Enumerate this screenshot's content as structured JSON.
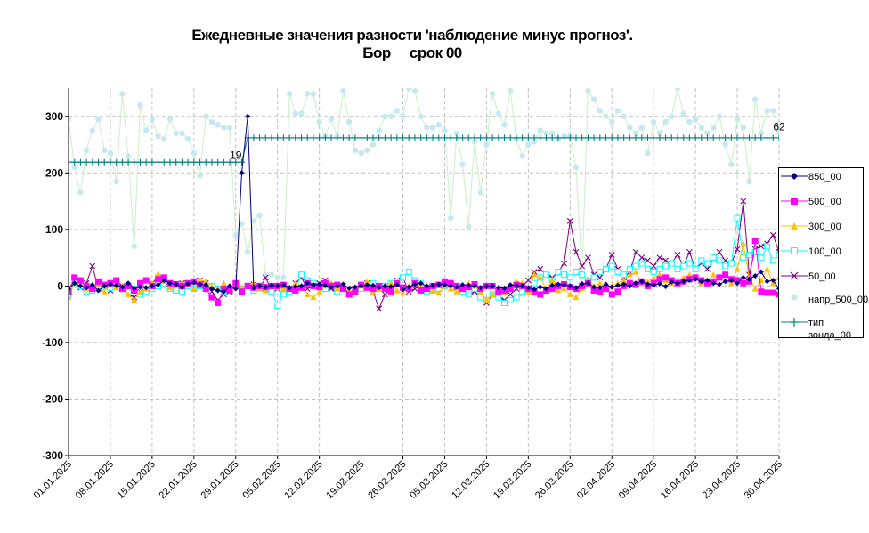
{
  "chart_data": {
    "type": "line",
    "title": "Ежедневные значения разности 'наблюдение минус прогноз'.",
    "subtitle": "Бор     срок 00",
    "ylim": [
      -300,
      350
    ],
    "yticks": [
      -300,
      -200,
      -100,
      0,
      100,
      200,
      300
    ],
    "x_start": "2025-01-01",
    "x_end": "2025-04-30",
    "xtick_labels": [
      "01.01.2025",
      "08.01.2025",
      "15.01.2025",
      "22.01.2025",
      "29.01.2025",
      "05.02.2025",
      "12.02.2025",
      "19.02.2025",
      "26.02.2025",
      "05.03.2025",
      "12.03.2025",
      "19.03.2025",
      "26.03.2025",
      "02.04.2025",
      "09.04.2025",
      "16.04.2025",
      "23.04.2025",
      "30.04.2025"
    ],
    "grid": true,
    "legend_position": "right",
    "annotations": [
      {
        "text": "19",
        "x": "2025-01-29",
        "y": 225
      },
      {
        "text": "62",
        "x": "2025-04-30",
        "y": 275
      }
    ],
    "series": [
      {
        "name": "850_00",
        "color": "#000080",
        "marker": "diamond",
        "values": [
          -5,
          5,
          0,
          -3,
          2,
          -8,
          0,
          3,
          1,
          -2,
          5,
          -4,
          -2,
          -3,
          0,
          2,
          10,
          5,
          3,
          -2,
          4,
          6,
          3,
          2,
          -5,
          -8,
          -10,
          0,
          -5,
          200,
          300,
          -3,
          0,
          -2,
          1,
          0,
          2,
          -3,
          -1,
          0,
          5,
          2,
          3,
          1,
          -2,
          0,
          3,
          -4,
          -2,
          0,
          2,
          1,
          -3,
          0,
          -1,
          2,
          -6,
          -2,
          3,
          5,
          0,
          1,
          3,
          2,
          0,
          -2,
          2,
          1,
          0,
          -3,
          -1,
          0,
          -3,
          -4,
          2,
          1,
          0,
          -3,
          -6,
          -2,
          -5,
          1,
          3,
          2,
          0,
          -3,
          4,
          5,
          -2,
          -3,
          3,
          -2,
          1,
          3,
          0,
          5,
          8,
          3,
          2,
          4,
          -1,
          7,
          5,
          8,
          10,
          12,
          8,
          10,
          5,
          3,
          8,
          10,
          5,
          15,
          12,
          18,
          25,
          8,
          10,
          -5,
          -3,
          2,
          6,
          8,
          10
        ]
      },
      {
        "name": "500_00",
        "color": "#ff00ff",
        "marker": "square",
        "values": [
          -10,
          15,
          10,
          0,
          -5,
          8,
          2,
          5,
          10,
          -5,
          0,
          -8,
          5,
          10,
          0,
          12,
          15,
          5,
          3,
          0,
          5,
          8,
          2,
          -5,
          -20,
          -30,
          -5,
          -8,
          5,
          -10,
          0,
          -3,
          0,
          -2,
          0,
          0,
          2,
          -5,
          -8,
          -3,
          5,
          0,
          -2,
          5,
          0,
          2,
          -5,
          -15,
          -10,
          2,
          -3,
          -5,
          0,
          -5,
          -10,
          5,
          -3,
          -5,
          5,
          -8,
          -5,
          0,
          2,
          8,
          5,
          0,
          -5,
          -2,
          3,
          -5,
          0,
          0,
          -10,
          -8,
          -5,
          2,
          0,
          -5,
          -10,
          -15,
          -8,
          -5,
          0,
          3,
          -2,
          -5,
          0,
          5,
          -8,
          -10,
          -5,
          -15,
          -10,
          0,
          5,
          2,
          8,
          0,
          5,
          12,
          15,
          10,
          5,
          8,
          12,
          15,
          10,
          5,
          8,
          15,
          20,
          12,
          10,
          5,
          8,
          80,
          -10,
          -12,
          -12,
          -15,
          0,
          5,
          10,
          8,
          12,
          20
        ]
      },
      {
        "name": "300_00",
        "color": "#ffc000",
        "marker": "triangle",
        "values": [
          -20,
          5,
          8,
          -5,
          0,
          3,
          -10,
          5,
          -3,
          0,
          -15,
          -25,
          -10,
          -5,
          5,
          22,
          8,
          -3,
          0,
          5,
          2,
          -5,
          10,
          8,
          0,
          -5,
          5,
          -8,
          0,
          -2,
          0,
          5,
          -5,
          -8,
          0,
          -3,
          -5,
          -2,
          5,
          0,
          -15,
          -20,
          -10,
          0,
          5,
          -5,
          -2,
          -10,
          -5,
          0,
          8,
          -10,
          -5,
          0,
          5,
          -8,
          -12,
          0,
          5,
          3,
          -5,
          -8,
          -12,
          0,
          -5,
          -10,
          -3,
          5,
          0,
          -10,
          -25,
          -15,
          -8,
          -12,
          0,
          8,
          5,
          -10,
          20,
          15,
          -5,
          10,
          -8,
          -5,
          -15,
          -20,
          -5,
          10,
          0,
          5,
          -3,
          0,
          5,
          10,
          20,
          25,
          5,
          8,
          15,
          20,
          10,
          5,
          10,
          15,
          20,
          15,
          5,
          8,
          20,
          15,
          10,
          5,
          30,
          75,
          15,
          -5,
          10,
          30,
          5,
          15,
          20,
          25,
          10
        ]
      },
      {
        "name": "100_00",
        "color": "#00ffff",
        "marker": "square-open",
        "values": [
          -15,
          5,
          0,
          -10,
          -8,
          -5,
          0,
          -3,
          5,
          -5,
          -10,
          -5,
          -15,
          -10,
          -5,
          0,
          5,
          -5,
          -8,
          -10,
          0,
          -5,
          0,
          -3,
          0,
          -5,
          -10,
          -8,
          0,
          -5,
          0,
          -8,
          0,
          -5,
          -10,
          -35,
          -15,
          -10,
          -5,
          20,
          10,
          5,
          0,
          -5,
          0,
          -10,
          -5,
          -15,
          -10,
          -5,
          0,
          5,
          -5,
          0,
          5,
          8,
          15,
          25,
          10,
          5,
          -10,
          -8,
          -5,
          0,
          5,
          0,
          -10,
          -15,
          -5,
          -20,
          -25,
          -15,
          -20,
          -30,
          -25,
          -20,
          -10,
          -5,
          5,
          15,
          20,
          10,
          25,
          20,
          15,
          25,
          20,
          10,
          15,
          25,
          30,
          35,
          25,
          20,
          30,
          35,
          40,
          30,
          25,
          30,
          35,
          40,
          30,
          35,
          40,
          30,
          45,
          40,
          50,
          45,
          35,
          40,
          120,
          50,
          55,
          60,
          50,
          70,
          45,
          55,
          60,
          50,
          55
        ]
      },
      {
        "name": "50_00",
        "color": "#800080",
        "marker": "x",
        "values": [
          -5,
          10,
          -3,
          5,
          35,
          -5,
          0,
          -8,
          5,
          0,
          -15,
          -20,
          -10,
          -5,
          5,
          15,
          5,
          -3,
          2,
          5,
          0,
          -5,
          10,
          5,
          -10,
          -25,
          -15,
          -10,
          0,
          -5,
          0,
          3,
          -5,
          15,
          -8,
          -5,
          0,
          -10,
          5,
          15,
          -5,
          0,
          5,
          10,
          -5,
          -10,
          0,
          -15,
          -5,
          0,
          5,
          -10,
          -40,
          -15,
          0,
          10,
          15,
          -10,
          -5,
          0,
          -5,
          -8,
          -5,
          0,
          5,
          -3,
          -10,
          -15,
          -10,
          -20,
          -30,
          -15,
          -20,
          -25,
          -15,
          -5,
          0,
          10,
          25,
          30,
          20,
          15,
          25,
          40,
          115,
          60,
          35,
          50,
          20,
          15,
          30,
          55,
          30,
          15,
          25,
          60,
          50,
          45,
          35,
          50,
          45,
          40,
          55,
          35,
          60,
          30,
          40,
          30,
          50,
          60,
          45,
          40,
          65,
          150,
          20,
          65,
          70,
          75,
          90,
          60,
          65,
          70,
          75,
          80
        ]
      },
      {
        "name": "напр_500_00",
        "color": "#c6e8f0",
        "line_color": "#c8f0c8",
        "marker": "circle",
        "values": [
          295,
          210,
          165,
          240,
          275,
          295,
          240,
          235,
          185,
          340,
          230,
          70,
          320,
          275,
          295,
          265,
          260,
          295,
          270,
          270,
          260,
          235,
          195,
          300,
          290,
          285,
          280,
          280,
          90,
          110,
          60,
          115,
          125,
          20,
          20,
          15,
          15,
          340,
          305,
          305,
          340,
          340,
          290,
          265,
          295,
          265,
          345,
          290,
          240,
          235,
          240,
          250,
          275,
          300,
          300,
          310,
          300,
          350,
          345,
          300,
          280,
          280,
          285,
          275,
          120,
          270,
          215,
          105,
          255,
          165,
          250,
          340,
          305,
          285,
          345,
          260,
          230,
          250,
          255,
          275,
          270,
          270,
          260,
          265,
          265,
          210,
          15,
          345,
          330,
          310,
          300,
          290,
          310,
          300,
          280,
          270,
          280,
          235,
          290,
          270,
          290,
          300,
          350,
          305,
          290,
          295,
          280,
          270,
          280,
          300,
          250,
          215,
          295,
          280,
          185,
          330,
          270,
          310,
          310,
          275,
          290,
          330,
          210
        ]
      },
      {
        "name": "тип зонда_00",
        "color": "#008080",
        "marker": "plus",
        "values": [
          219,
          219,
          219,
          219,
          219,
          219,
          219,
          219,
          219,
          219,
          219,
          219,
          219,
          219,
          219,
          219,
          219,
          219,
          219,
          219,
          219,
          219,
          219,
          219,
          219,
          219,
          219,
          219,
          219,
          219,
          262,
          262,
          262,
          262,
          262,
          262,
          262,
          262,
          262,
          262,
          262,
          262,
          262,
          262,
          262,
          262,
          262,
          262,
          262,
          262,
          262,
          262,
          262,
          262,
          262,
          262,
          262,
          262,
          262,
          262,
          262,
          262,
          262,
          262,
          262,
          262,
          262,
          262,
          262,
          262,
          262,
          262,
          262,
          262,
          262,
          262,
          262,
          262,
          262,
          262,
          262,
          262,
          262,
          262,
          262,
          262,
          262,
          262,
          262,
          262,
          262,
          262,
          262,
          262,
          262,
          262,
          262,
          262,
          262,
          262,
          262,
          262,
          262,
          262,
          262,
          262,
          262,
          262,
          262,
          262,
          262,
          262,
          262,
          262,
          262,
          262,
          262,
          262,
          262,
          262
        ]
      }
    ]
  },
  "legend": {
    "items": [
      "850_00",
      "500_00",
      "300_00",
      "100_00",
      "50_00",
      "напр_500_00",
      "тип зонда_00"
    ]
  }
}
